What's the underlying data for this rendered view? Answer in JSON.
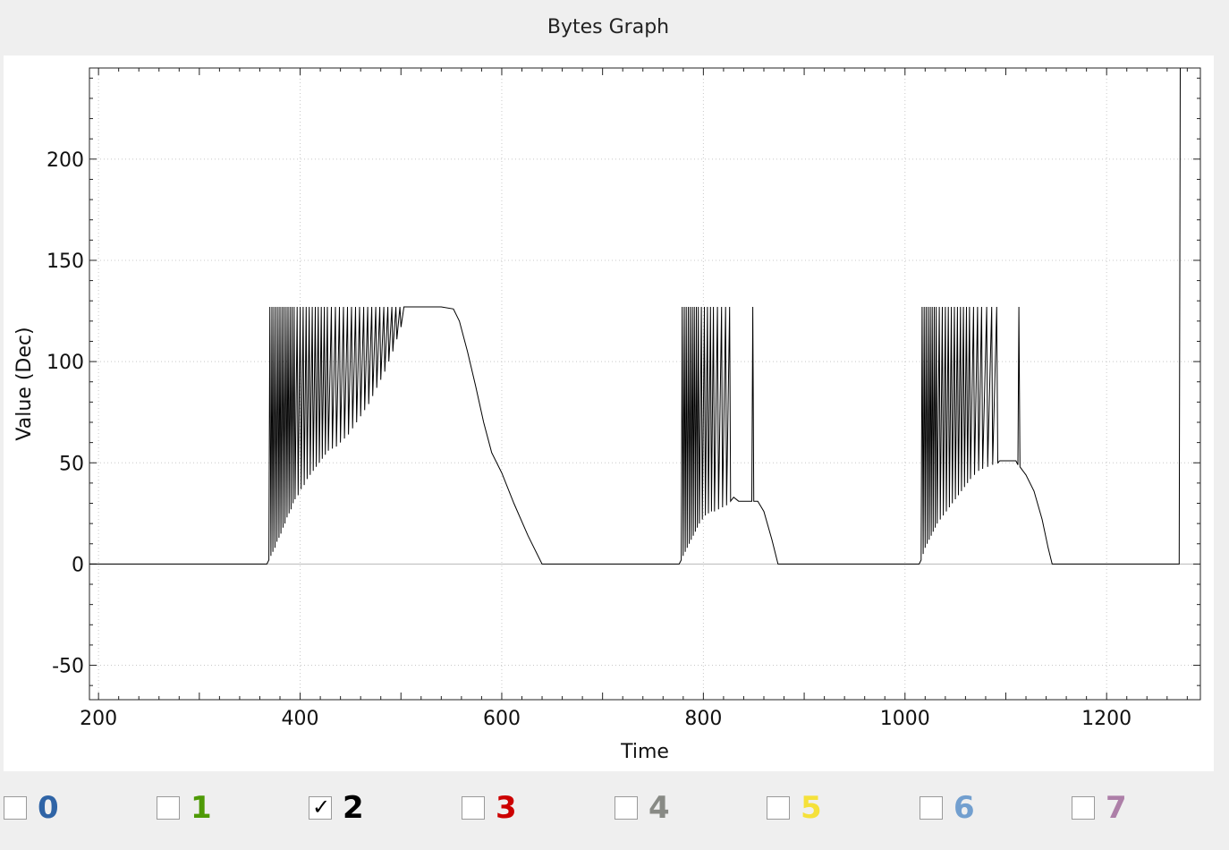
{
  "window": {
    "title": "Bytes Graph"
  },
  "channels": [
    {
      "label": "0",
      "checked": false,
      "color": "#2f64a6"
    },
    {
      "label": "1",
      "checked": false,
      "color": "#4e9a06"
    },
    {
      "label": "2",
      "checked": true,
      "color": "#000000"
    },
    {
      "label": "3",
      "checked": false,
      "color": "#cc0000"
    },
    {
      "label": "4",
      "checked": false,
      "color": "#888a85"
    },
    {
      "label": "5",
      "checked": false,
      "color": "#f5e13a"
    },
    {
      "label": "6",
      "checked": false,
      "color": "#729fcf"
    },
    {
      "label": "7",
      "checked": false,
      "color": "#ad7fa8"
    }
  ],
  "chart_data": {
    "type": "line",
    "xlabel": "Time",
    "ylabel": "Value (Dec)",
    "xlim": [
      191,
      1293
    ],
    "ylim": [
      -67,
      245
    ],
    "x_ticks": [
      200,
      400,
      600,
      800,
      1000,
      1200
    ],
    "y_ticks": [
      -50,
      0,
      50,
      100,
      150,
      200
    ],
    "grid": true,
    "line_color": "#000000",
    "series": [
      {
        "channel": "2",
        "points": [
          [
            191,
            0
          ],
          [
            367,
            0
          ],
          [
            369,
            2
          ],
          [
            370,
            127
          ],
          [
            371,
            4
          ],
          [
            372,
            127
          ],
          [
            373,
            6
          ],
          [
            374,
            127
          ],
          [
            375,
            8
          ],
          [
            376,
            127
          ],
          [
            377,
            11
          ],
          [
            378,
            127
          ],
          [
            379,
            13
          ],
          [
            380,
            127
          ],
          [
            381,
            15
          ],
          [
            382,
            127
          ],
          [
            383,
            18
          ],
          [
            384,
            127
          ],
          [
            385,
            20
          ],
          [
            386,
            127
          ],
          [
            387,
            23
          ],
          [
            388,
            127
          ],
          [
            389,
            25
          ],
          [
            390,
            127
          ],
          [
            391,
            27
          ],
          [
            392,
            127
          ],
          [
            393,
            30
          ],
          [
            394,
            127
          ],
          [
            395,
            32
          ],
          [
            397,
            127
          ],
          [
            398,
            34
          ],
          [
            400,
            127
          ],
          [
            401,
            37
          ],
          [
            403,
            127
          ],
          [
            404,
            39
          ],
          [
            406,
            127
          ],
          [
            407,
            42
          ],
          [
            409,
            127
          ],
          [
            410,
            44
          ],
          [
            412,
            127
          ],
          [
            413,
            46
          ],
          [
            415,
            127
          ],
          [
            416,
            48
          ],
          [
            418,
            127
          ],
          [
            419,
            50
          ],
          [
            421,
            127
          ],
          [
            422,
            52
          ],
          [
            424,
            127
          ],
          [
            425,
            54
          ],
          [
            427,
            127
          ],
          [
            428,
            56
          ],
          [
            431,
            127
          ],
          [
            432,
            57
          ],
          [
            435,
            127
          ],
          [
            436,
            58
          ],
          [
            439,
            127
          ],
          [
            440,
            60
          ],
          [
            443,
            127
          ],
          [
            444,
            62
          ],
          [
            447,
            127
          ],
          [
            448,
            64
          ],
          [
            451,
            127
          ],
          [
            452,
            67
          ],
          [
            455,
            127
          ],
          [
            456,
            70
          ],
          [
            459,
            127
          ],
          [
            460,
            73
          ],
          [
            463,
            127
          ],
          [
            464,
            76
          ],
          [
            467,
            127
          ],
          [
            468,
            79
          ],
          [
            471,
            127
          ],
          [
            472,
            83
          ],
          [
            475,
            127
          ],
          [
            476,
            87
          ],
          [
            479,
            127
          ],
          [
            480,
            91
          ],
          [
            483,
            127
          ],
          [
            484,
            95
          ],
          [
            487,
            127
          ],
          [
            488,
            100
          ],
          [
            491,
            127
          ],
          [
            492,
            105
          ],
          [
            495,
            127
          ],
          [
            496,
            111
          ],
          [
            499,
            127
          ],
          [
            500,
            117
          ],
          [
            503,
            127
          ],
          [
            540,
            127
          ],
          [
            552,
            126
          ],
          [
            558,
            120
          ],
          [
            566,
            105
          ],
          [
            574,
            88
          ],
          [
            582,
            70
          ],
          [
            590,
            55
          ],
          [
            600,
            45
          ],
          [
            612,
            30
          ],
          [
            626,
            14
          ],
          [
            640,
            0
          ],
          [
            776,
            0
          ],
          [
            778,
            2
          ],
          [
            779,
            127
          ],
          [
            780,
            4
          ],
          [
            781,
            127
          ],
          [
            782,
            6
          ],
          [
            783,
            127
          ],
          [
            784,
            8
          ],
          [
            785,
            127
          ],
          [
            786,
            10
          ],
          [
            787,
            127
          ],
          [
            788,
            12
          ],
          [
            789,
            127
          ],
          [
            790,
            14
          ],
          [
            791,
            127
          ],
          [
            792,
            16
          ],
          [
            793,
            127
          ],
          [
            794,
            18
          ],
          [
            795,
            127
          ],
          [
            796,
            20
          ],
          [
            798,
            127
          ],
          [
            799,
            22
          ],
          [
            801,
            127
          ],
          [
            802,
            24
          ],
          [
            804,
            127
          ],
          [
            805,
            25
          ],
          [
            807,
            127
          ],
          [
            808,
            26
          ],
          [
            810,
            127
          ],
          [
            811,
            26
          ],
          [
            814,
            127
          ],
          [
            815,
            27
          ],
          [
            818,
            127
          ],
          [
            819,
            28
          ],
          [
            822,
            127
          ],
          [
            823,
            29
          ],
          [
            826,
            127
          ],
          [
            827,
            31
          ],
          [
            830,
            33
          ],
          [
            835,
            31
          ],
          [
            848,
            31
          ],
          [
            849,
            127
          ],
          [
            850,
            31
          ],
          [
            854,
            31
          ],
          [
            860,
            26
          ],
          [
            868,
            12
          ],
          [
            874,
            0
          ],
          [
            1014,
            0
          ],
          [
            1016,
            2
          ],
          [
            1017,
            127
          ],
          [
            1018,
            5
          ],
          [
            1019,
            127
          ],
          [
            1020,
            8
          ],
          [
            1021,
            127
          ],
          [
            1022,
            10
          ],
          [
            1023,
            127
          ],
          [
            1024,
            12
          ],
          [
            1025,
            127
          ],
          [
            1026,
            14
          ],
          [
            1027,
            127
          ],
          [
            1028,
            16
          ],
          [
            1029,
            127
          ],
          [
            1030,
            18
          ],
          [
            1031,
            127
          ],
          [
            1032,
            20
          ],
          [
            1034,
            127
          ],
          [
            1035,
            22
          ],
          [
            1037,
            127
          ],
          [
            1038,
            24
          ],
          [
            1040,
            127
          ],
          [
            1041,
            26
          ],
          [
            1043,
            127
          ],
          [
            1044,
            28
          ],
          [
            1046,
            127
          ],
          [
            1047,
            30
          ],
          [
            1049,
            127
          ],
          [
            1050,
            32
          ],
          [
            1052,
            127
          ],
          [
            1053,
            34
          ],
          [
            1055,
            127
          ],
          [
            1056,
            36
          ],
          [
            1058,
            127
          ],
          [
            1059,
            38
          ],
          [
            1061,
            127
          ],
          [
            1062,
            40
          ],
          [
            1064,
            127
          ],
          [
            1065,
            42
          ],
          [
            1068,
            127
          ],
          [
            1069,
            44
          ],
          [
            1072,
            127
          ],
          [
            1073,
            46
          ],
          [
            1076,
            127
          ],
          [
            1077,
            47
          ],
          [
            1081,
            127
          ],
          [
            1082,
            48
          ],
          [
            1086,
            127
          ],
          [
            1087,
            49
          ],
          [
            1091,
            127
          ],
          [
            1092,
            50
          ],
          [
            1094,
            51
          ],
          [
            1110,
            51
          ],
          [
            1112,
            49
          ],
          [
            1113,
            127
          ],
          [
            1114,
            48
          ],
          [
            1120,
            44
          ],
          [
            1128,
            36
          ],
          [
            1136,
            22
          ],
          [
            1142,
            8
          ],
          [
            1146,
            0
          ],
          [
            1272,
            0
          ],
          [
            1273,
            245
          ]
        ]
      }
    ]
  }
}
